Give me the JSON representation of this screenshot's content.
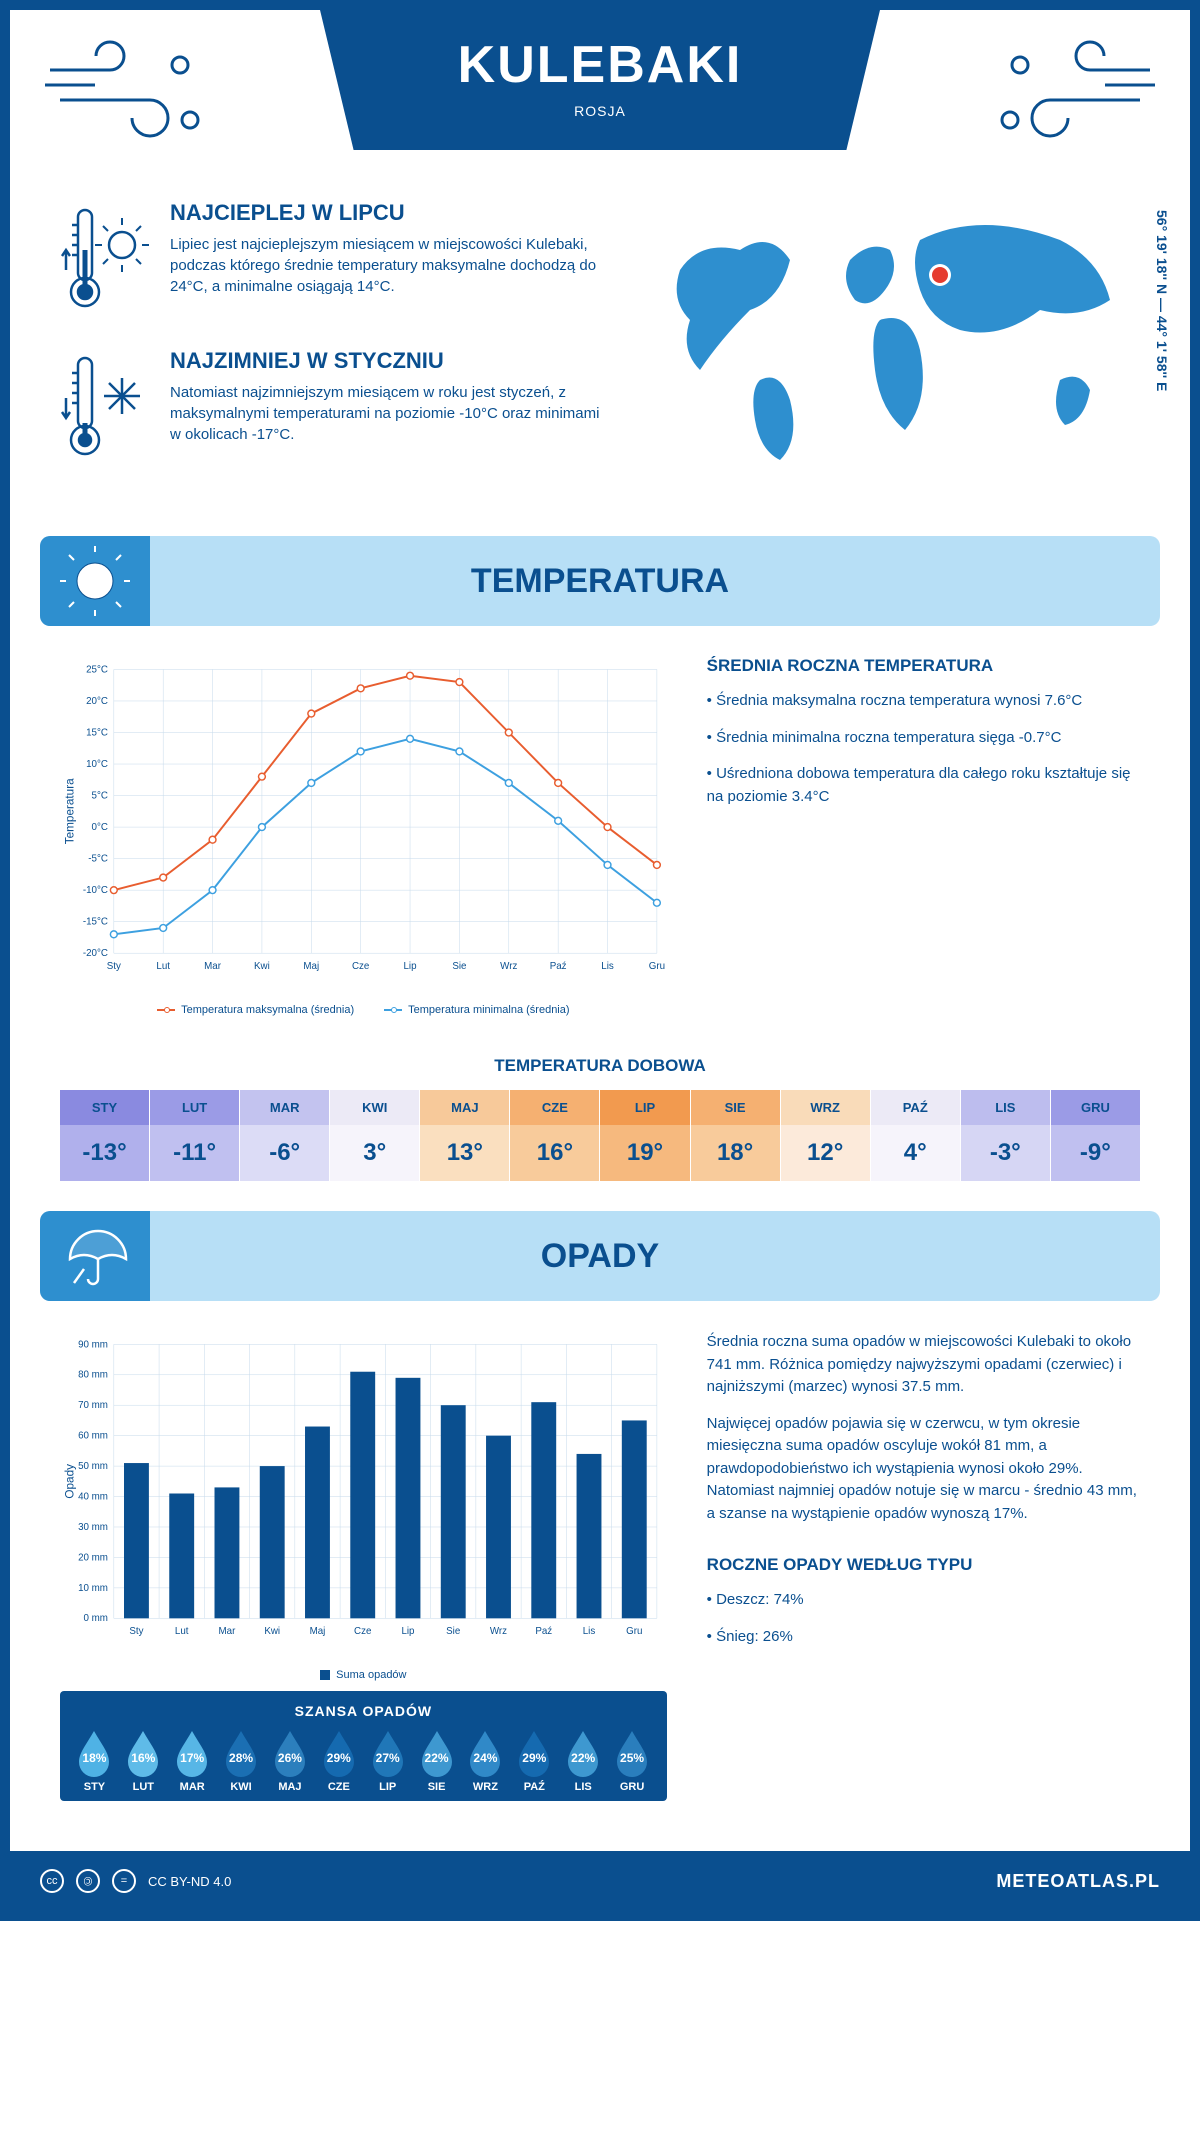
{
  "header": {
    "city": "KULEBAKI",
    "country": "ROSJA",
    "coords": "56° 19' 18'' N — 44° 1' 58'' E"
  },
  "intro": {
    "warm": {
      "title": "NAJCIEPLEJ W LIPCU",
      "text": "Lipiec jest najcieplejszym miesiącem w miejscowości Kulebaki, podczas którego średnie temperatury maksymalne dochodzą do 24°C, a minimalne osiągają 14°C."
    },
    "cold": {
      "title": "NAJZIMNIEJ W STYCZNIU",
      "text": "Natomiast najzimniejszym miesiącem w roku jest styczeń, z maksymalnymi temperaturami na poziomie -10°C oraz minimami w okolicach -17°C."
    }
  },
  "temperature": {
    "section_title": "TEMPERATURA",
    "chart": {
      "months": [
        "Sty",
        "Lut",
        "Mar",
        "Kwi",
        "Maj",
        "Cze",
        "Lip",
        "Sie",
        "Wrz",
        "Paź",
        "Lis",
        "Gru"
      ],
      "y_label": "Temperatura",
      "y_min": -20,
      "y_max": 25,
      "y_step": 5,
      "y_ticks": [
        "-20°C",
        "-15°C",
        "-10°C",
        "-5°C",
        "0°C",
        "5°C",
        "10°C",
        "15°C",
        "20°C",
        "25°C"
      ],
      "series": [
        {
          "name": "Temperatura maksymalna (średnia)",
          "color": "#e85d2f",
          "values": [
            -10,
            -8,
            -2,
            8,
            18,
            22,
            24,
            23,
            15,
            7,
            0,
            -6
          ]
        },
        {
          "name": "Temperatura minimalna (średnia)",
          "color": "#3da0e0",
          "values": [
            -17,
            -16,
            -10,
            0,
            7,
            12,
            14,
            12,
            7,
            1,
            -6,
            -12
          ]
        }
      ]
    },
    "stats_title": "ŚREDNIA ROCZNA TEMPERATURA",
    "stats": [
      "• Średnia maksymalna roczna temperatura wynosi 7.6°C",
      "• Średnia minimalna roczna temperatura sięga -0.7°C",
      "• Uśredniona dobowa temperatura dla całego roku kształtuje się na poziomie 3.4°C"
    ],
    "daily_title": "TEMPERATURA DOBOWA",
    "daily": {
      "months": [
        "STY",
        "LUT",
        "MAR",
        "KWI",
        "MAJ",
        "CZE",
        "LIP",
        "SIE",
        "WRZ",
        "PAŹ",
        "LIS",
        "GRU"
      ],
      "values": [
        "-13°",
        "-11°",
        "-6°",
        "3°",
        "13°",
        "16°",
        "19°",
        "18°",
        "12°",
        "4°",
        "-3°",
        "-9°"
      ],
      "header_colors": [
        "#8a8ae0",
        "#9b9be6",
        "#c3c3ef",
        "#eceaf6",
        "#f7c99a",
        "#f5b071",
        "#f29a4f",
        "#f5b071",
        "#f9dbb9",
        "#eceaf6",
        "#bdbdee",
        "#9b9be6"
      ],
      "value_colors": [
        "#b0b0ec",
        "#c0c0f0",
        "#dcdcf6",
        "#f6f4fb",
        "#fadfbf",
        "#f8cb9b",
        "#f6b97e",
        "#f8cb9b",
        "#fceada",
        "#f6f4fb",
        "#d6d6f4",
        "#c0c0f0"
      ]
    }
  },
  "precip": {
    "section_title": "OPADY",
    "chart": {
      "months": [
        "Sty",
        "Lut",
        "Mar",
        "Kwi",
        "Maj",
        "Cze",
        "Lip",
        "Sie",
        "Wrz",
        "Paź",
        "Lis",
        "Gru"
      ],
      "y_label": "Opady",
      "y_min": 0,
      "y_max": 90,
      "y_step": 10,
      "y_ticks": [
        "0 mm",
        "10 mm",
        "20 mm",
        "30 mm",
        "40 mm",
        "50 mm",
        "60 mm",
        "70 mm",
        "80 mm",
        "90 mm"
      ],
      "bar_color": "#0a4f8f",
      "values": [
        51,
        41,
        43,
        50,
        63,
        81,
        79,
        70,
        60,
        71,
        54,
        65
      ],
      "legend": "Suma opadów"
    },
    "text1": "Średnia roczna suma opadów w miejscowości Kulebaki to około 741 mm. Różnica pomiędzy najwyższymi opadami (czerwiec) i najniższymi (marzec) wynosi 37.5 mm.",
    "text2": "Najwięcej opadów pojawia się w czerwcu, w tym okresie miesięczna suma opadów oscyluje wokół 81 mm, a prawdopodobieństwo ich wystąpienia wynosi około 29%. Natomiast najmniej opadów notuje się w marcu - średnio 43 mm, a szanse na wystąpienie opadów wynoszą 17%.",
    "chance_title": "SZANSA OPADÓW",
    "chance": {
      "months": [
        "STY",
        "LUT",
        "MAR",
        "KWI",
        "MAJ",
        "CZE",
        "LIP",
        "SIE",
        "WRZ",
        "PAŹ",
        "LIS",
        "GRU"
      ],
      "pct": [
        "18%",
        "16%",
        "17%",
        "28%",
        "26%",
        "29%",
        "27%",
        "22%",
        "24%",
        "29%",
        "22%",
        "25%"
      ],
      "colors": [
        "#4fb2e5",
        "#5fbbe8",
        "#57b6e6",
        "#1b6fb3",
        "#2c7fbd",
        "#156ab0",
        "#2077b8",
        "#3e98d0",
        "#3089c8",
        "#156ab0",
        "#3e98d0",
        "#2a7ebd"
      ]
    },
    "by_type_title": "ROCZNE OPADY WEDŁUG TYPU",
    "by_type": [
      "• Deszcz: 74%",
      "• Śnieg: 26%"
    ]
  },
  "footer": {
    "license": "CC BY-ND 4.0",
    "site": "METEOATLAS.PL"
  }
}
